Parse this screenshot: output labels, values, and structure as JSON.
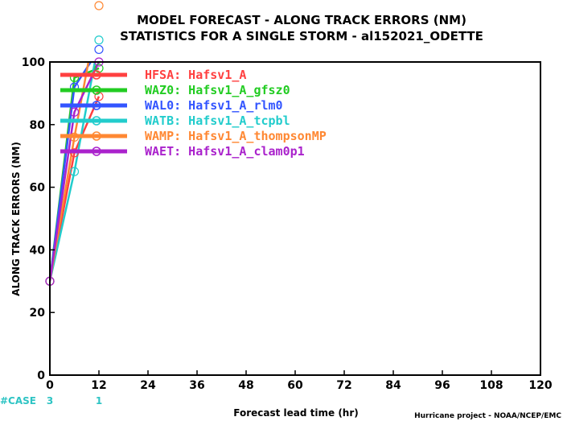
{
  "chart_data": {
    "type": "line",
    "title": "MODEL FORECAST - ALONG TRACK ERRORS (NM)",
    "subtitle": "STATISTICS FOR A SINGLE STORM - al152021_ODETTE",
    "xlabel": "Forecast lead time (hr)",
    "ylabel": "ALONG TRACK ERRORS (NM)",
    "xlim": [
      0,
      120
    ],
    "ylim": [
      0,
      100
    ],
    "xticks": [
      "0",
      "12",
      "24",
      "36",
      "48",
      "60",
      "72",
      "84",
      "96",
      "108",
      "120"
    ],
    "yticks": [
      "0",
      "20",
      "40",
      "60",
      "80",
      "100"
    ],
    "legend_position": "top-left",
    "grid": false,
    "series": [
      {
        "name": "HFSA: Hafsv1_A",
        "color": "#ff4040",
        "x": [
          0,
          6,
          12
        ],
        "y": [
          30,
          71,
          89
        ]
      },
      {
        "name": "WAZ0: Hafsv1_A_gfsz0",
        "color": "#22cc22",
        "x": [
          0,
          6,
          12
        ],
        "y": [
          30,
          95,
          98
        ]
      },
      {
        "name": "WAL0: Hafsv1_A_rlm0",
        "color": "#3355ff",
        "x": [
          0,
          6,
          12
        ],
        "y": [
          30,
          92,
          104
        ]
      },
      {
        "name": "WATB: Hafsv1_A_tcpbl",
        "color": "#22cccc",
        "x": [
          0,
          6,
          12
        ],
        "y": [
          30,
          65,
          107
        ]
      },
      {
        "name": "WAMP: Hafsv1_A_thompsonMP",
        "color": "#ff8833",
        "x": [
          0,
          6,
          12
        ],
        "y": [
          30,
          76,
          118
        ]
      },
      {
        "name": "WAET: Hafsv1_A_clam0p1",
        "color": "#aa22cc",
        "x": [
          0,
          6,
          12
        ],
        "y": [
          30,
          84,
          100
        ]
      }
    ],
    "cases": {
      "label": "#CASE",
      "x": [
        0,
        12
      ],
      "values": [
        "3",
        "1"
      ]
    }
  },
  "footer": {
    "credit": "Hurricane project - NOAA/NCEP/EMC"
  }
}
